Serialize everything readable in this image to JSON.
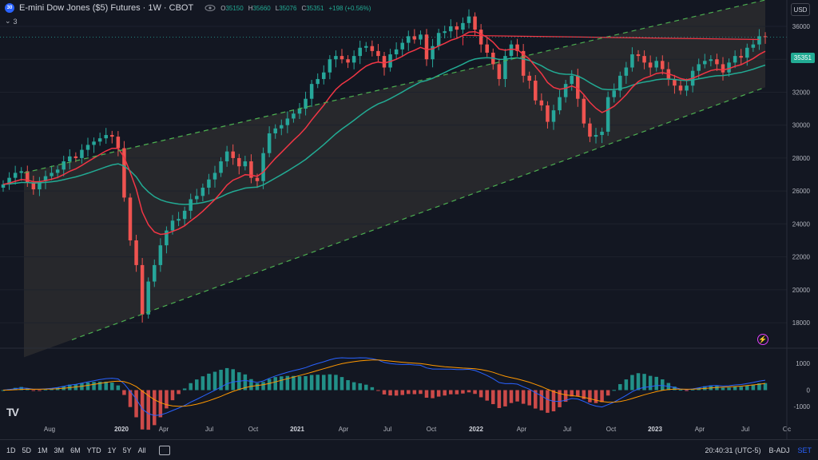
{
  "legend": {
    "badge": "30",
    "title": "E-mini Dow Jones ($5) Futures · 1W · CBOT",
    "ohlc": [
      {
        "label": "O",
        "value": "35150"
      },
      {
        "label": "H",
        "value": "35660"
      },
      {
        "label": "L",
        "value": "35076"
      },
      {
        "label": "C",
        "value": "35351"
      },
      {
        "label": "",
        "value": "+198 (+0.56%)"
      }
    ],
    "indicator_count": "3"
  },
  "currency": "USD",
  "last_price_tag": "35351",
  "bottombar": {
    "ranges": [
      "1D",
      "5D",
      "1M",
      "3M",
      "6M",
      "YTD",
      "1Y",
      "5Y",
      "All"
    ],
    "time": "20:40:31 (UTC-5)",
    "adj": "B-ADJ",
    "set": "SET"
  },
  "logo_text": "TV",
  "alert_icon": "⚡",
  "colors": {
    "background": "#131722",
    "up": "#26a69a",
    "down": "#ef5350",
    "ema_fast": "#f23645",
    "ema_slow": "#22ab94",
    "channel": "#4caf50",
    "macd": "#2962ff",
    "signal": "#ff9800"
  },
  "chart_data": {
    "type": "candlestick",
    "price_axis": [
      36000,
      34000,
      32000,
      30000,
      28000,
      26000,
      24000,
      22000,
      20000,
      18000
    ],
    "ylim": [
      16500,
      37600
    ],
    "time_axis": [
      "Aug",
      "2020",
      "Apr",
      "Jul",
      "Oct",
      "2021",
      "Apr",
      "Jul",
      "Oct",
      "2022",
      "Apr",
      "Jul",
      "Oct",
      "2023",
      "Apr",
      "Jul",
      "Oc"
    ],
    "close_series": [
      26400,
      26800,
      27100,
      27200,
      26500,
      26100,
      26600,
      26900,
      27100,
      27300,
      27800,
      28100,
      28000,
      28500,
      28800,
      29000,
      29200,
      29400,
      29300,
      28600,
      25600,
      23000,
      21500,
      18500,
      20500,
      21500,
      22700,
      23600,
      24200,
      24300,
      24800,
      25500,
      25700,
      26200,
      26700,
      27100,
      27800,
      28400,
      28000,
      27500,
      27800,
      26800,
      26600,
      28300,
      29500,
      29800,
      30000,
      30400,
      30700,
      31000,
      31600,
      32500,
      32800,
      33200,
      34000,
      34200,
      34000,
      33800,
      34200,
      34700,
      34800,
      34500,
      34200,
      33500,
      34300,
      34600,
      35000,
      35400,
      35200,
      35500,
      34000,
      34800,
      35600,
      35700,
      36000,
      35800,
      36200,
      36600,
      35800,
      34900,
      34400,
      33700,
      32800,
      34200,
      34900,
      34500,
      33000,
      32700,
      31500,
      31200,
      30200,
      30900,
      31700,
      32500,
      33000,
      31600,
      30100,
      29300,
      29400,
      29600,
      31700,
      32100,
      33000,
      33500,
      34300,
      34200,
      33800,
      33500,
      33900,
      33400,
      32800,
      32400,
      32100,
      32400,
      33300,
      33700,
      33900,
      34000,
      33700,
      33200,
      33800,
      34200,
      34100,
      34700,
      34900,
      35400,
      35351
    ],
    "channel": {
      "upper_start": 27100,
      "upper_end": 37600,
      "lower_start": 15900,
      "lower_end": 32300
    },
    "resistance_level": 35450,
    "macd_axis": [
      1000,
      0,
      -1000
    ]
  }
}
